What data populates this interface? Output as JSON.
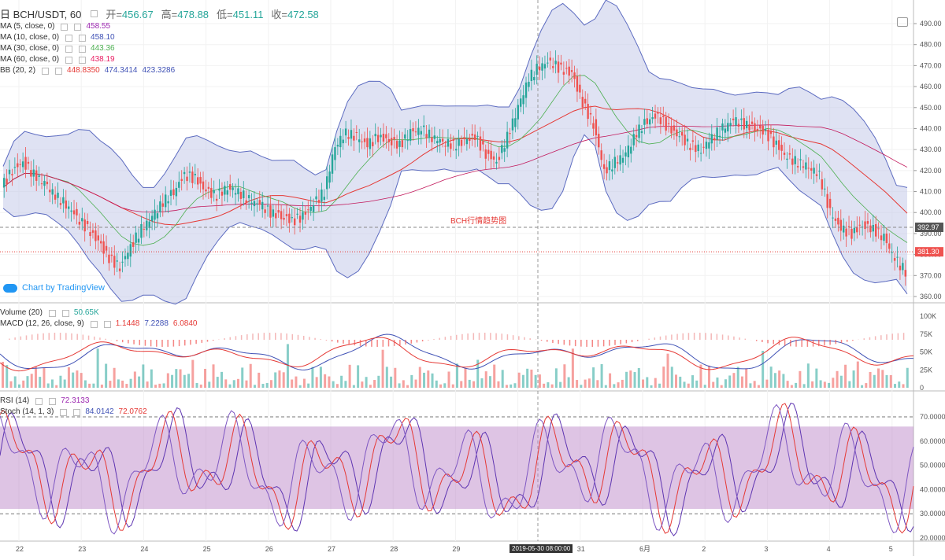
{
  "header": {
    "symbol_label": "日 BCH/USDT, 60",
    "open_label": "开=",
    "open_value": "456.67",
    "high_label": "高=",
    "high_value": "478.88",
    "low_label": "低=",
    "low_value": "451.11",
    "close_label": "收=",
    "close_value": "472.58"
  },
  "legend_main": [
    {
      "label": "MA (5, close, 0)",
      "value": "458.55",
      "color": "#9c27b0"
    },
    {
      "label": "MA (10, close, 0)",
      "value": "458.10",
      "color": "#3f51b5"
    },
    {
      "label": "MA (30, close, 0)",
      "value": "443.36",
      "color": "#4caf50"
    },
    {
      "label": "MA (60, close, 0)",
      "value": "438.19",
      "color": "#e91e63"
    },
    {
      "label": "BB (20, 2)",
      "value": "448.8350",
      "value2": "474.3414",
      "value3": "423.3286",
      "color": "#e53935",
      "color2": "#3f51b5",
      "color3": "#3f51b5"
    }
  ],
  "legend_volume": [
    {
      "label": "Volume (20)",
      "value": "50.65K",
      "color": "#26a69a"
    },
    {
      "label": "MACD (12, 26, close, 9)",
      "value": "1.1448",
      "value2": "7.2288",
      "value3": "6.0840",
      "color": "#e53935",
      "color2": "#3f51b5",
      "color3": "#e53935"
    }
  ],
  "legend_rsi": [
    {
      "label": "RSI (14)",
      "value": "72.3133",
      "color": "#9c27b0"
    },
    {
      "label": "Stoch (14, 1, 3)",
      "value": "84.0142",
      "value2": "72.0762",
      "color": "#3f51b5",
      "color2": "#e53935"
    }
  ],
  "watermark": "BCH行情趋势图",
  "tv_badge": "Chart by TradingView",
  "crosshair_date": "2019-05-30 08:00:00",
  "price_tags": {
    "dashed": "392.97",
    "current": "381.30"
  },
  "colors": {
    "up": "#26a69a",
    "down": "#ef5350",
    "bb_band": "#c5cae9",
    "bb_line": "#5c6bc0",
    "rsi_band": "#b57cc4"
  },
  "chart_data": [
    {
      "type": "candlestick",
      "title": "BCH/USDT, 60",
      "ylim": [
        355,
        495
      ],
      "y_ticks": [
        360,
        370,
        380,
        390,
        400,
        410,
        420,
        430,
        440,
        450,
        460,
        470,
        480,
        490
      ],
      "x_ticks": [
        "22",
        "23",
        "24",
        "25",
        "26",
        "27",
        "28",
        "29",
        "30",
        "31",
        "6月",
        "2",
        "3",
        "4",
        "5"
      ],
      "close_series": [
        412,
        420,
        424,
        418,
        414,
        408,
        404,
        398,
        392,
        386,
        378,
        374,
        384,
        392,
        398,
        405,
        410,
        418,
        416,
        410,
        408,
        412,
        410,
        406,
        404,
        400,
        398,
        396,
        398,
        404,
        410,
        432,
        438,
        436,
        432,
        436,
        434,
        432,
        438,
        440,
        436,
        434,
        432,
        434,
        436,
        428,
        424,
        436,
        450,
        464,
        470,
        472,
        468,
        466,
        452,
        442,
        420,
        424,
        428,
        438,
        444,
        446,
        440,
        436,
        432,
        430,
        436,
        440,
        444,
        442,
        440,
        438,
        432,
        426,
        424,
        422,
        418,
        400,
        392,
        390,
        394,
        392,
        388,
        378,
        372
      ]
    },
    {
      "type": "bar",
      "title": "Volume (20)",
      "ylim": [
        0,
        110000
      ],
      "y_ticks": [
        "100K",
        "75K",
        "50K",
        "25K",
        "0"
      ]
    },
    {
      "type": "line",
      "title": "RSI (14)",
      "ylim": [
        20,
        80
      ],
      "y_ticks": [
        "70.0000",
        "60.0000",
        "50.0000",
        "40.0000",
        "30.0000",
        "20.0000"
      ],
      "band": [
        32,
        66
      ]
    }
  ]
}
